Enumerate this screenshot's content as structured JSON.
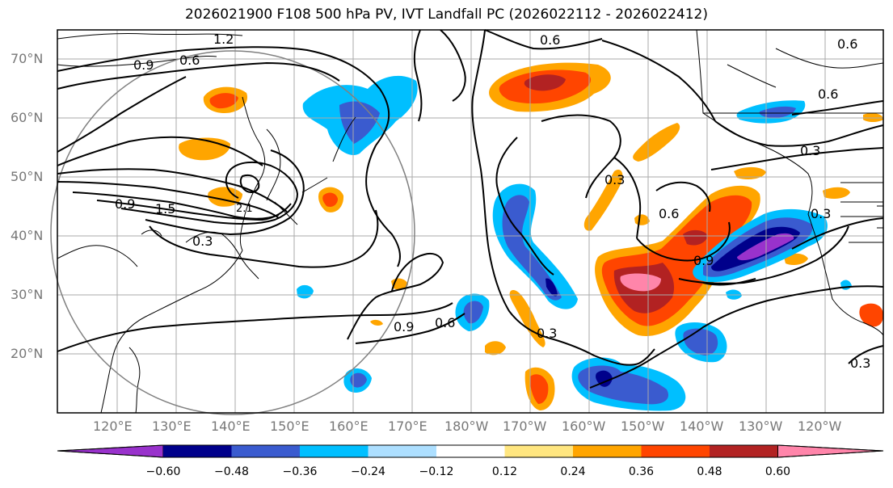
{
  "title": "2026021900 F108 500 hPa PV, IVT Landfall PC (2026022112 - 2026022412)",
  "latitude_labels": [
    "70°N",
    "60°N",
    "50°N",
    "40°N",
    "30°N",
    "20°N"
  ],
  "longitude_labels": [
    "120°E",
    "130°E",
    "140°E",
    "150°E",
    "160°E",
    "170°E",
    "180°W",
    "170°W",
    "160°W",
    "150°W",
    "140°W",
    "130°W",
    "120°W"
  ],
  "contour_labels": [
    "1.2",
    "0.6",
    "0.9",
    "0.6",
    "0.6",
    "0.6",
    "0.3",
    "0.9",
    "1.5",
    "0.3",
    "0.3",
    "0.6",
    "0.9",
    "0.3",
    "0.9",
    "0.6",
    "0.3",
    "0.3",
    "2.1"
  ],
  "colorbar": {
    "ticks": [
      "−0.60",
      "−0.48",
      "−0.36",
      "−0.24",
      "−0.12",
      "0.12",
      "0.24",
      "0.36",
      "0.48",
      "0.60"
    ],
    "colors": [
      "#9932CC",
      "#00008B",
      "#3A5BCF",
      "#00BFFF",
      "#ADDFFF",
      "#FFFFFF",
      "#FFE680",
      "#FFA500",
      "#FF4500",
      "#B22222",
      "#FF85AA"
    ]
  }
}
